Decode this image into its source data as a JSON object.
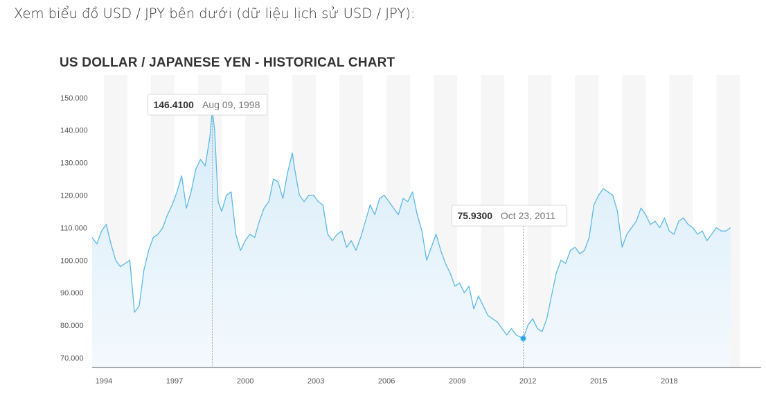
{
  "intro_text": "Xem biểu đồ USD / JPY bên dưới (dữ liệu lịch sử USD / JPY):",
  "chart_data": {
    "type": "area",
    "title": "US DOLLAR / JAPANESE YEN - HISTORICAL CHART",
    "xlabel": "",
    "ylabel": "",
    "ylim": [
      67,
      157
    ],
    "xlim": [
      1993.5,
      2021.9
    ],
    "y_ticks": [
      "150.000",
      "140.000",
      "130.000",
      "120.000",
      "110.000",
      "100.000",
      "90.000",
      "80.000",
      "70.000"
    ],
    "y_tick_values": [
      150,
      140,
      130,
      120,
      110,
      100,
      90,
      80,
      70
    ],
    "x_ticks": [
      "1994",
      "1997",
      "2000",
      "2003",
      "2006",
      "2009",
      "2012",
      "2015",
      "2018"
    ],
    "x_tick_values": [
      1994,
      1997,
      2000,
      2003,
      2006,
      2009,
      2012,
      2015,
      2018
    ],
    "grid": "alternating vertical bands",
    "colors": {
      "line": "#5bb8e6",
      "fill_top": "#d6ecf9",
      "fill_bottom": "#f4f9fd",
      "band": "#f6f6f6",
      "marker": "#2aa3ea",
      "axis": "#555555"
    },
    "annotations": [
      {
        "kind": "high",
        "value_label": "146.4100",
        "date_label": "Aug 09, 1998",
        "x": 1998.6,
        "y": 146.41
      },
      {
        "kind": "low",
        "value_label": "75.9300",
        "date_label": "Oct 23, 2011",
        "x": 2011.8,
        "y": 75.93
      }
    ],
    "series": [
      {
        "x": [
          1993.5,
          1993.7,
          1993.9,
          1994.1,
          1994.3,
          1994.5,
          1994.7,
          1994.9,
          1995.1,
          1995.3,
          1995.5,
          1995.7,
          1995.9,
          1996.1,
          1996.3,
          1996.5,
          1996.7,
          1996.9,
          1997.1,
          1997.3,
          1997.5,
          1997.7,
          1997.9,
          1998.1,
          1998.3,
          1998.5,
          1998.6,
          1998.7,
          1998.85,
          1999.0,
          1999.2,
          1999.4,
          1999.6,
          1999.8,
          2000.0,
          2000.2,
          2000.4,
          2000.6,
          2000.8,
          2001.0,
          2001.2,
          2001.4,
          2001.6,
          2001.8,
          2002.0,
          2002.1,
          2002.3,
          2002.5,
          2002.7,
          2002.9,
          2003.1,
          2003.3,
          2003.5,
          2003.7,
          2003.9,
          2004.1,
          2004.3,
          2004.5,
          2004.7,
          2004.9,
          2005.1,
          2005.3,
          2005.5,
          2005.7,
          2005.9,
          2006.1,
          2006.3,
          2006.5,
          2006.7,
          2006.9,
          2007.1,
          2007.3,
          2007.5,
          2007.7,
          2007.9,
          2008.1,
          2008.3,
          2008.5,
          2008.7,
          2008.9,
          2009.1,
          2009.3,
          2009.5,
          2009.7,
          2009.9,
          2010.1,
          2010.3,
          2010.5,
          2010.7,
          2010.9,
          2011.1,
          2011.3,
          2011.5,
          2011.8,
          2012.0,
          2012.2,
          2012.4,
          2012.6,
          2012.8,
          2013.0,
          2013.2,
          2013.4,
          2013.6,
          2013.8,
          2014.0,
          2014.2,
          2014.4,
          2014.6,
          2014.8,
          2015.0,
          2015.2,
          2015.4,
          2015.6,
          2015.8,
          2016.0,
          2016.2,
          2016.4,
          2016.6,
          2016.8,
          2017.0,
          2017.2,
          2017.4,
          2017.6,
          2017.8,
          2018.0,
          2018.2,
          2018.4,
          2018.6,
          2018.8,
          2019.0,
          2019.2,
          2019.4,
          2019.6,
          2019.8,
          2020.0,
          2020.2,
          2020.4,
          2020.6
        ],
        "y": [
          107,
          105,
          109,
          111,
          105,
          100,
          98,
          99,
          100,
          84,
          86,
          97,
          103,
          107,
          108,
          110,
          114,
          117,
          121,
          126,
          116,
          121,
          128,
          131,
          129,
          138,
          146.41,
          140,
          118,
          115,
          120,
          121,
          108,
          103,
          106,
          108,
          107,
          112,
          116,
          118,
          125,
          124,
          119,
          127,
          133,
          128,
          120,
          118,
          120,
          120,
          118,
          117,
          108,
          106,
          108,
          109,
          104,
          106,
          103,
          107,
          112,
          117,
          114,
          119,
          120,
          118,
          116,
          114,
          119,
          118,
          121,
          114,
          109,
          100,
          104,
          108,
          103,
          99,
          96,
          92,
          93,
          90,
          92,
          85,
          89,
          86,
          83,
          82,
          81,
          79,
          77,
          79,
          77,
          75.93,
          80,
          82,
          79,
          78,
          82,
          89,
          96,
          100,
          99,
          103,
          104,
          102,
          103,
          107,
          117,
          120,
          122,
          121,
          120,
          115,
          104,
          108,
          110,
          112,
          116,
          114,
          111,
          112,
          110,
          113,
          109,
          108,
          112,
          113,
          111,
          110,
          108,
          109,
          106,
          108,
          110,
          109,
          109,
          110
        ]
      }
    ]
  }
}
